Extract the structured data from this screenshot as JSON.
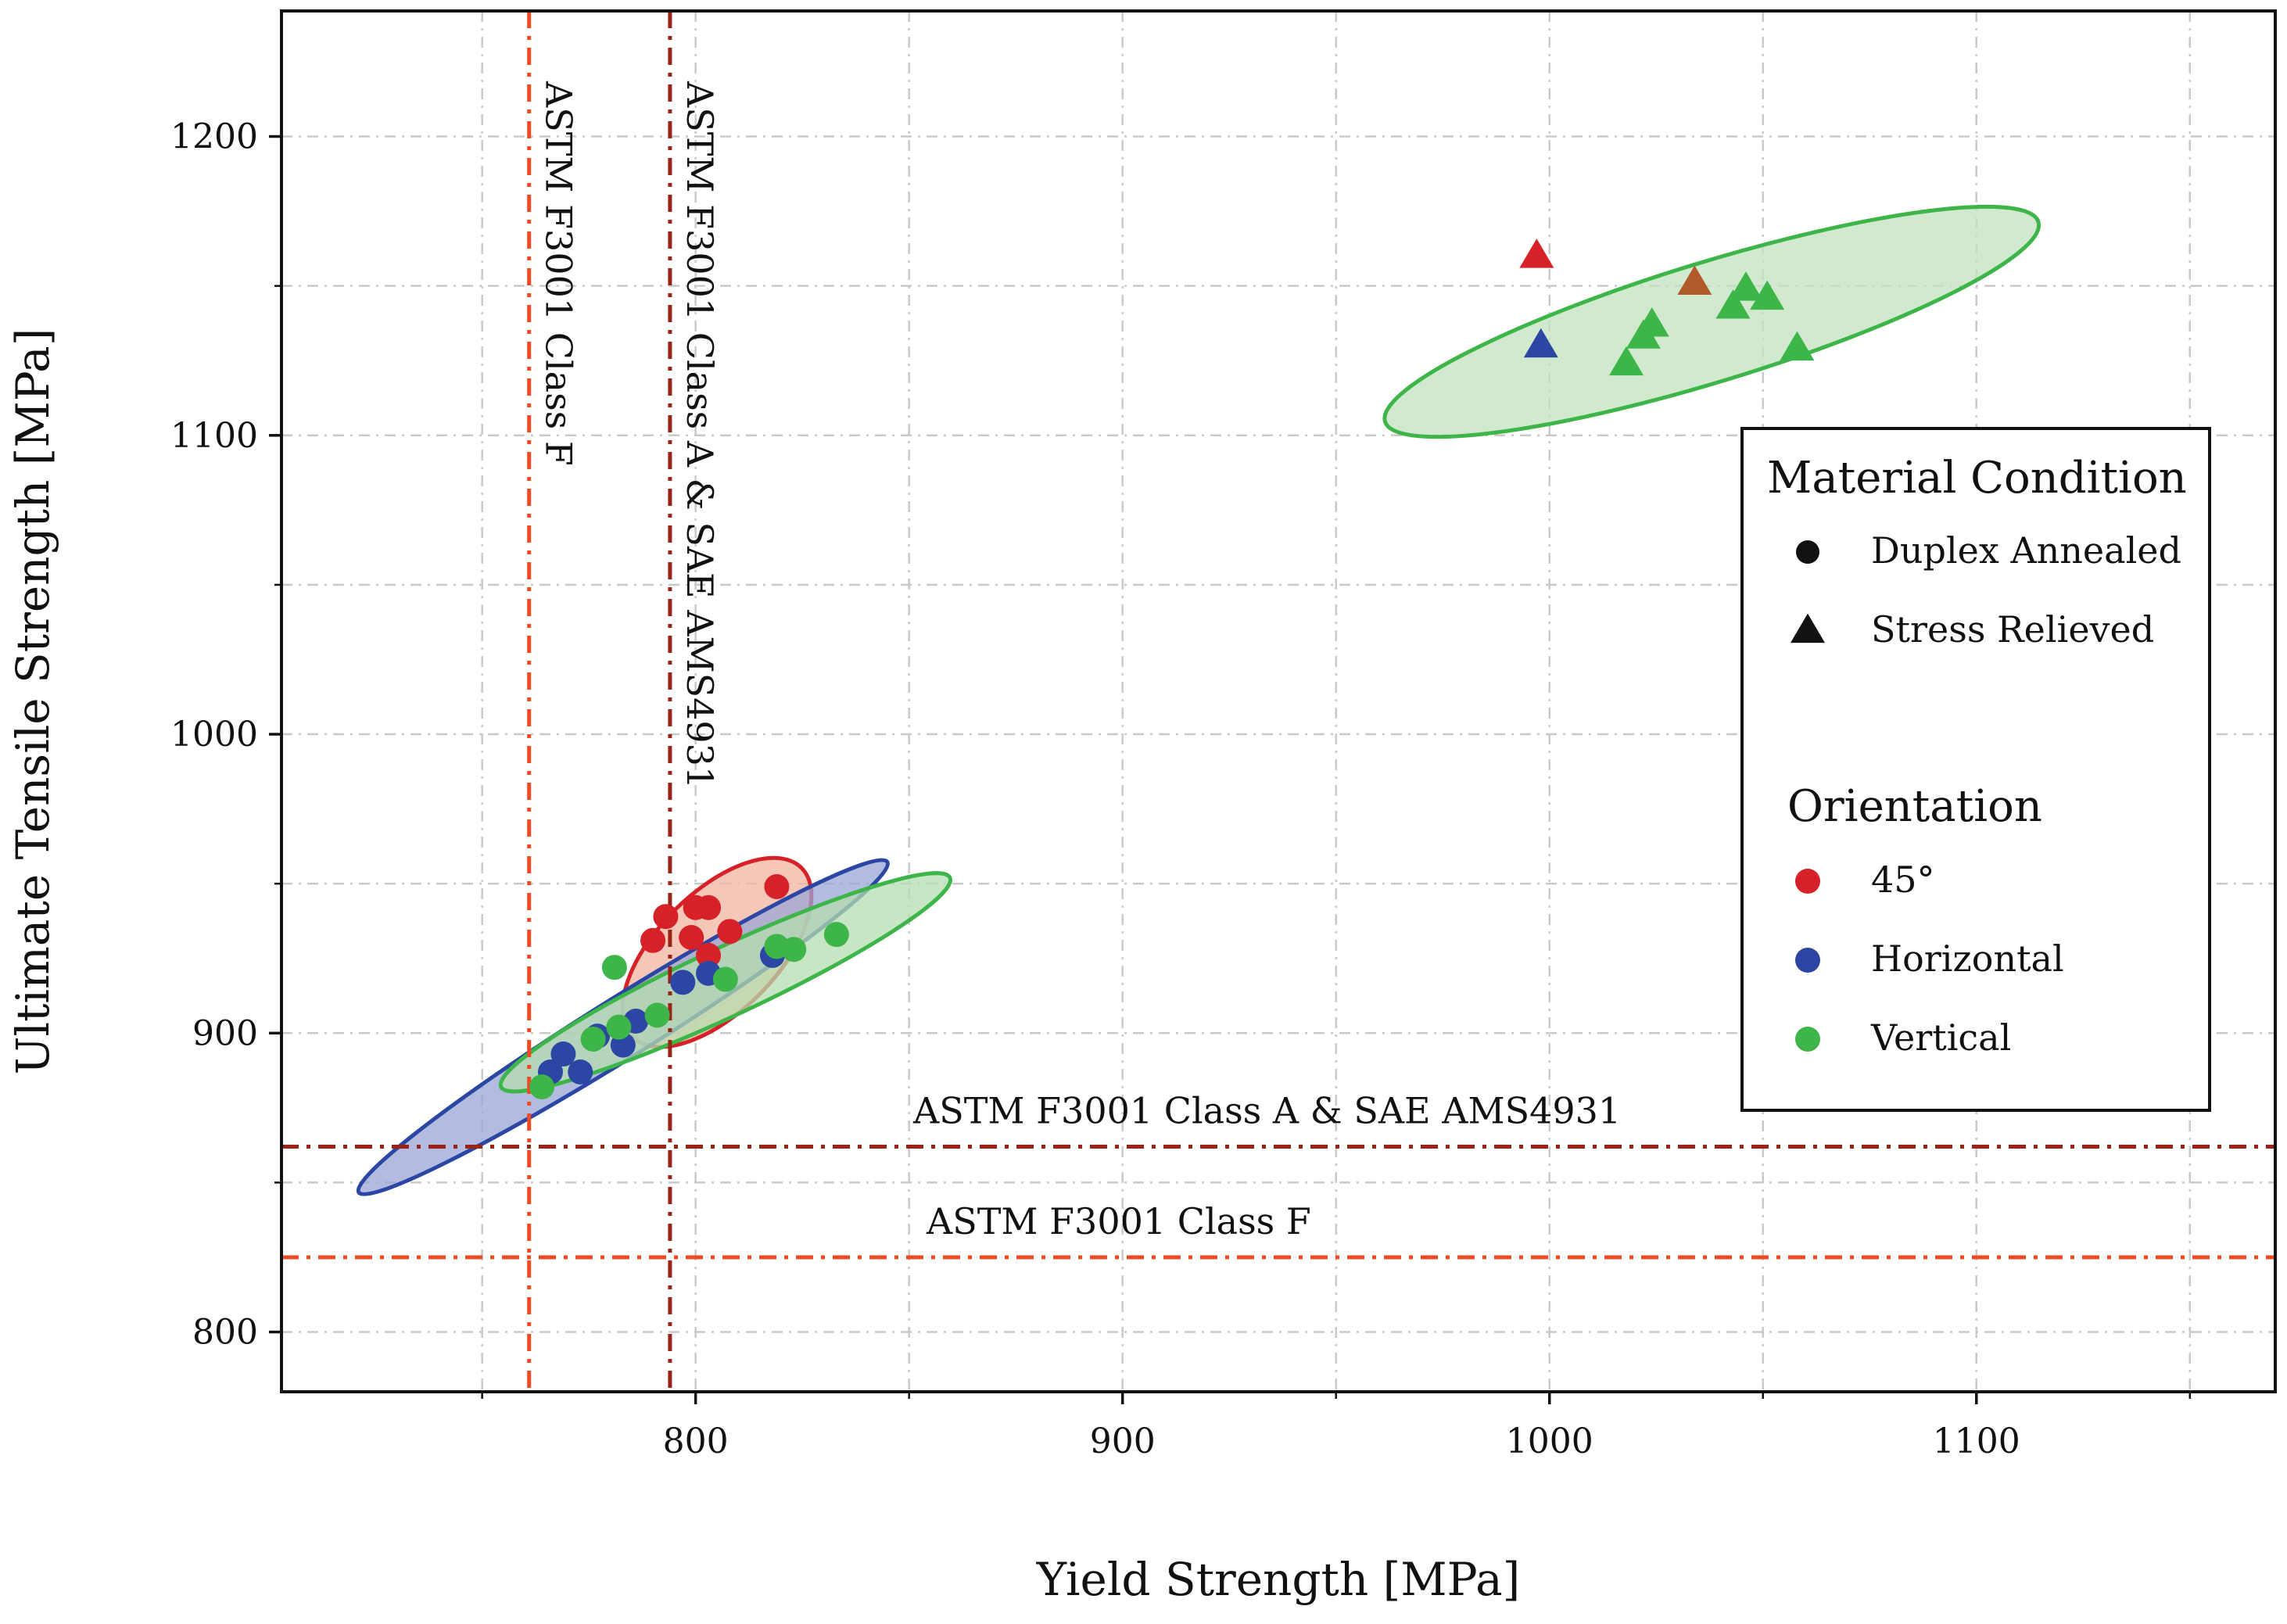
{
  "chart_data": {
    "type": "scatter",
    "title": "",
    "xlabel": "Yield Strength [MPa]",
    "ylabel": "Ultimate Tensile Strength [MPa]",
    "xlim": [
      703,
      1170
    ],
    "ylim": [
      780,
      1242
    ],
    "x_major_ticks": [
      800,
      900,
      1000,
      1100
    ],
    "x_minor_ticks": [
      750,
      850,
      950,
      1050,
      1150
    ],
    "y_major_ticks": [
      800,
      900,
      1000,
      1100,
      1200
    ],
    "y_minor_ticks": [
      850,
      950,
      1050,
      1150
    ],
    "grid": true,
    "legend": {
      "placement": "right",
      "condition_title": "Material Condition",
      "conditions": [
        {
          "label": "Duplex Annealed",
          "marker": "circle"
        },
        {
          "label": "Stress Relieved",
          "marker": "triangle"
        }
      ],
      "orientation_title": "Orientation",
      "orientations": [
        {
          "label": "45°",
          "color": "#d62128"
        },
        {
          "label": "Horizontal",
          "color": "#2b46a3"
        },
        {
          "label": "Vertical",
          "color": "#3db549"
        }
      ]
    },
    "reference_lines": [
      {
        "axis": "x",
        "value": 761,
        "label": "ASTM F3001 Class F",
        "color": "#f04a24"
      },
      {
        "axis": "x",
        "value": 794,
        "label": "ASTM F3001 Class A & SAE AMS4931",
        "color": "#9a2317"
      },
      {
        "axis": "y",
        "value": 862,
        "label": "ASTM F3001 Class A & SAE AMS4931",
        "color": "#9a2317"
      },
      {
        "axis": "y",
        "value": 825,
        "label": "ASTM F3001 Class F",
        "color": "#f04a24"
      }
    ],
    "ellipses": [
      {
        "series": "45°",
        "cx": 805,
        "cy": 927,
        "rx": 28,
        "ry": 14,
        "angle": 45,
        "fill": "#f2b4a0",
        "stroke": "#d62128"
      },
      {
        "series": "Horizontal",
        "cx": 783,
        "cy": 902,
        "rx": 73,
        "ry": 7,
        "angle": 32,
        "fill": "#9aa6d6",
        "stroke": "#2b46a3"
      },
      {
        "series": "Vertical",
        "cx": 807,
        "cy": 917,
        "rx": 58,
        "ry": 8,
        "angle": 25,
        "fill": "#b4ddb0",
        "stroke": "#3db549"
      },
      {
        "series": "Vertical",
        "cx": 1038,
        "cy": 1138,
        "rx": 80,
        "ry": 14,
        "angle": 17,
        "fill": "#c2e2bd",
        "stroke": "#3db549"
      }
    ],
    "series": [
      {
        "name": "45°",
        "color": "#d62128",
        "points": [
          {
            "x": 819,
            "y": 949,
            "marker": "circle"
          },
          {
            "x": 800,
            "y": 942,
            "marker": "circle"
          },
          {
            "x": 803,
            "y": 942,
            "marker": "circle"
          },
          {
            "x": 793,
            "y": 939,
            "marker": "circle"
          },
          {
            "x": 808,
            "y": 934,
            "marker": "circle"
          },
          {
            "x": 799,
            "y": 932,
            "marker": "circle"
          },
          {
            "x": 790,
            "y": 931,
            "marker": "circle"
          },
          {
            "x": 803,
            "y": 926,
            "marker": "circle"
          },
          {
            "x": 997,
            "y": 1160,
            "marker": "triangle"
          }
        ]
      },
      {
        "name": "Horizontal",
        "color": "#2b46a3",
        "points": [
          {
            "x": 818,
            "y": 926,
            "marker": "circle"
          },
          {
            "x": 803,
            "y": 920,
            "marker": "circle"
          },
          {
            "x": 797,
            "y": 917,
            "marker": "circle"
          },
          {
            "x": 786,
            "y": 904,
            "marker": "circle"
          },
          {
            "x": 783,
            "y": 896,
            "marker": "circle"
          },
          {
            "x": 777,
            "y": 899,
            "marker": "circle"
          },
          {
            "x": 769,
            "y": 893,
            "marker": "circle"
          },
          {
            "x": 773,
            "y": 887,
            "marker": "circle"
          },
          {
            "x": 766,
            "y": 887,
            "marker": "circle"
          },
          {
            "x": 998,
            "y": 1130,
            "marker": "triangle"
          }
        ]
      },
      {
        "name": "Vertical",
        "color": "#3db549",
        "points": [
          {
            "x": 833,
            "y": 933,
            "marker": "circle"
          },
          {
            "x": 823,
            "y": 928,
            "marker": "circle"
          },
          {
            "x": 819,
            "y": 929,
            "marker": "circle"
          },
          {
            "x": 781,
            "y": 922,
            "marker": "circle"
          },
          {
            "x": 807,
            "y": 918,
            "marker": "circle"
          },
          {
            "x": 791,
            "y": 906,
            "marker": "circle"
          },
          {
            "x": 782,
            "y": 902,
            "marker": "circle"
          },
          {
            "x": 776,
            "y": 898,
            "marker": "circle"
          },
          {
            "x": 764,
            "y": 882,
            "marker": "circle"
          },
          {
            "x": 1046,
            "y": 1149,
            "marker": "triangle"
          },
          {
            "x": 1051,
            "y": 1146,
            "marker": "triangle"
          },
          {
            "x": 1043,
            "y": 1143,
            "marker": "triangle"
          },
          {
            "x": 1024,
            "y": 1137,
            "marker": "triangle"
          },
          {
            "x": 1022,
            "y": 1133,
            "marker": "triangle"
          },
          {
            "x": 1058,
            "y": 1129,
            "marker": "triangle"
          },
          {
            "x": 1018,
            "y": 1124,
            "marker": "triangle"
          }
        ]
      },
      {
        "name": "",
        "color": "#b35a2b",
        "points": [
          {
            "x": 1034,
            "y": 1151,
            "marker": "triangle"
          }
        ]
      }
    ]
  }
}
